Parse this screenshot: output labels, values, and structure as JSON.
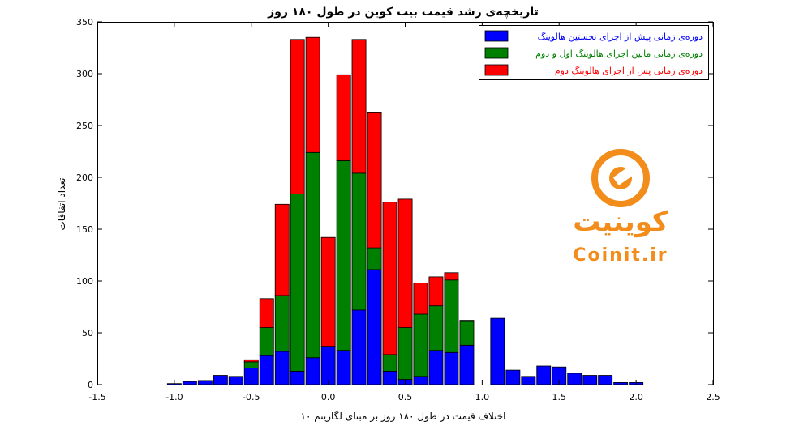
{
  "chart_data": {
    "type": "bar",
    "stacked": true,
    "title": "تاریخچه‌ی رشد قیمت بیت کوین در طول ۱۸۰ روز",
    "xlabel": "اختلاف قیمت در طول ۱۸۰ روز بر مبنای لگاریتم ۱۰",
    "ylabel": "تعداد اتفاقات",
    "xlim": [
      -1.5,
      2.5
    ],
    "ylim": [
      0,
      350
    ],
    "bin_width": 0.1,
    "x_ticks": [
      {
        "value": -1.5,
        "label": "-1.5"
      },
      {
        "value": -1.0,
        "label": "-1.0"
      },
      {
        "value": -0.5,
        "label": "-0.5"
      },
      {
        "value": 0.0,
        "label": "0.0"
      },
      {
        "value": 0.5,
        "label": "0.5"
      },
      {
        "value": 1.0,
        "label": "1.0"
      },
      {
        "value": 1.5,
        "label": "1.5"
      },
      {
        "value": 2.0,
        "label": "2.0"
      },
      {
        "value": 2.5,
        "label": "2.5"
      }
    ],
    "y_ticks": [
      {
        "value": 0,
        "label": "0"
      },
      {
        "value": 50,
        "label": "50"
      },
      {
        "value": 100,
        "label": "100"
      },
      {
        "value": 150,
        "label": "150"
      },
      {
        "value": 200,
        "label": "200"
      },
      {
        "value": 250,
        "label": "250"
      },
      {
        "value": 300,
        "label": "300"
      },
      {
        "value": 350,
        "label": "350"
      }
    ],
    "grid": false,
    "legend_position": "top-right",
    "x": [
      -1.0,
      -0.9,
      -0.8,
      -0.7,
      -0.6,
      -0.5,
      -0.4,
      -0.3,
      -0.2,
      -0.1,
      0.0,
      0.1,
      0.2,
      0.3,
      0.4,
      0.5,
      0.6,
      0.7,
      0.8,
      0.9,
      1.0,
      1.1,
      1.2,
      1.3,
      1.4,
      1.5,
      1.6,
      1.7,
      1.8,
      1.9,
      2.0,
      2.1,
      2.2
    ],
    "series": [
      {
        "name": "دوره‌ی زمانی پیش از اجرای نخستین هالوینگ",
        "color": "#0000ff",
        "values": [
          1,
          3,
          4,
          9,
          8,
          16,
          28,
          32,
          13,
          26,
          37,
          33,
          72,
          111,
          13,
          5,
          8,
          33,
          31,
          38,
          0,
          64,
          14,
          8,
          18,
          17,
          11,
          9,
          9,
          2,
          2,
          0,
          0
        ]
      },
      {
        "name": "دوره‌ی زمانی مابین اجرای هالوینگ اول و دوم",
        "color": "#008000",
        "values": [
          0,
          0,
          0,
          0,
          0,
          6,
          27,
          54,
          171,
          198,
          0,
          183,
          132,
          21,
          16,
          50,
          60,
          43,
          70,
          23,
          0,
          0,
          0,
          0,
          0,
          0,
          0,
          0,
          0,
          0,
          0,
          0,
          0
        ]
      },
      {
        "name": "دوره‌ی زمانی پس از اجرای هالوینگ دوم",
        "color": "#ff0000",
        "values": [
          0,
          0,
          0,
          0,
          0,
          2,
          28,
          88,
          149,
          111,
          105,
          83,
          129,
          131,
          147,
          124,
          30,
          28,
          7,
          1,
          0,
          0,
          0,
          0,
          0,
          0,
          0,
          0,
          0,
          0,
          0,
          0,
          0
        ]
      }
    ]
  },
  "logo": {
    "text_fa": "کوینیت",
    "text_en": "Coinit.ir",
    "color": "#f28c1a"
  }
}
